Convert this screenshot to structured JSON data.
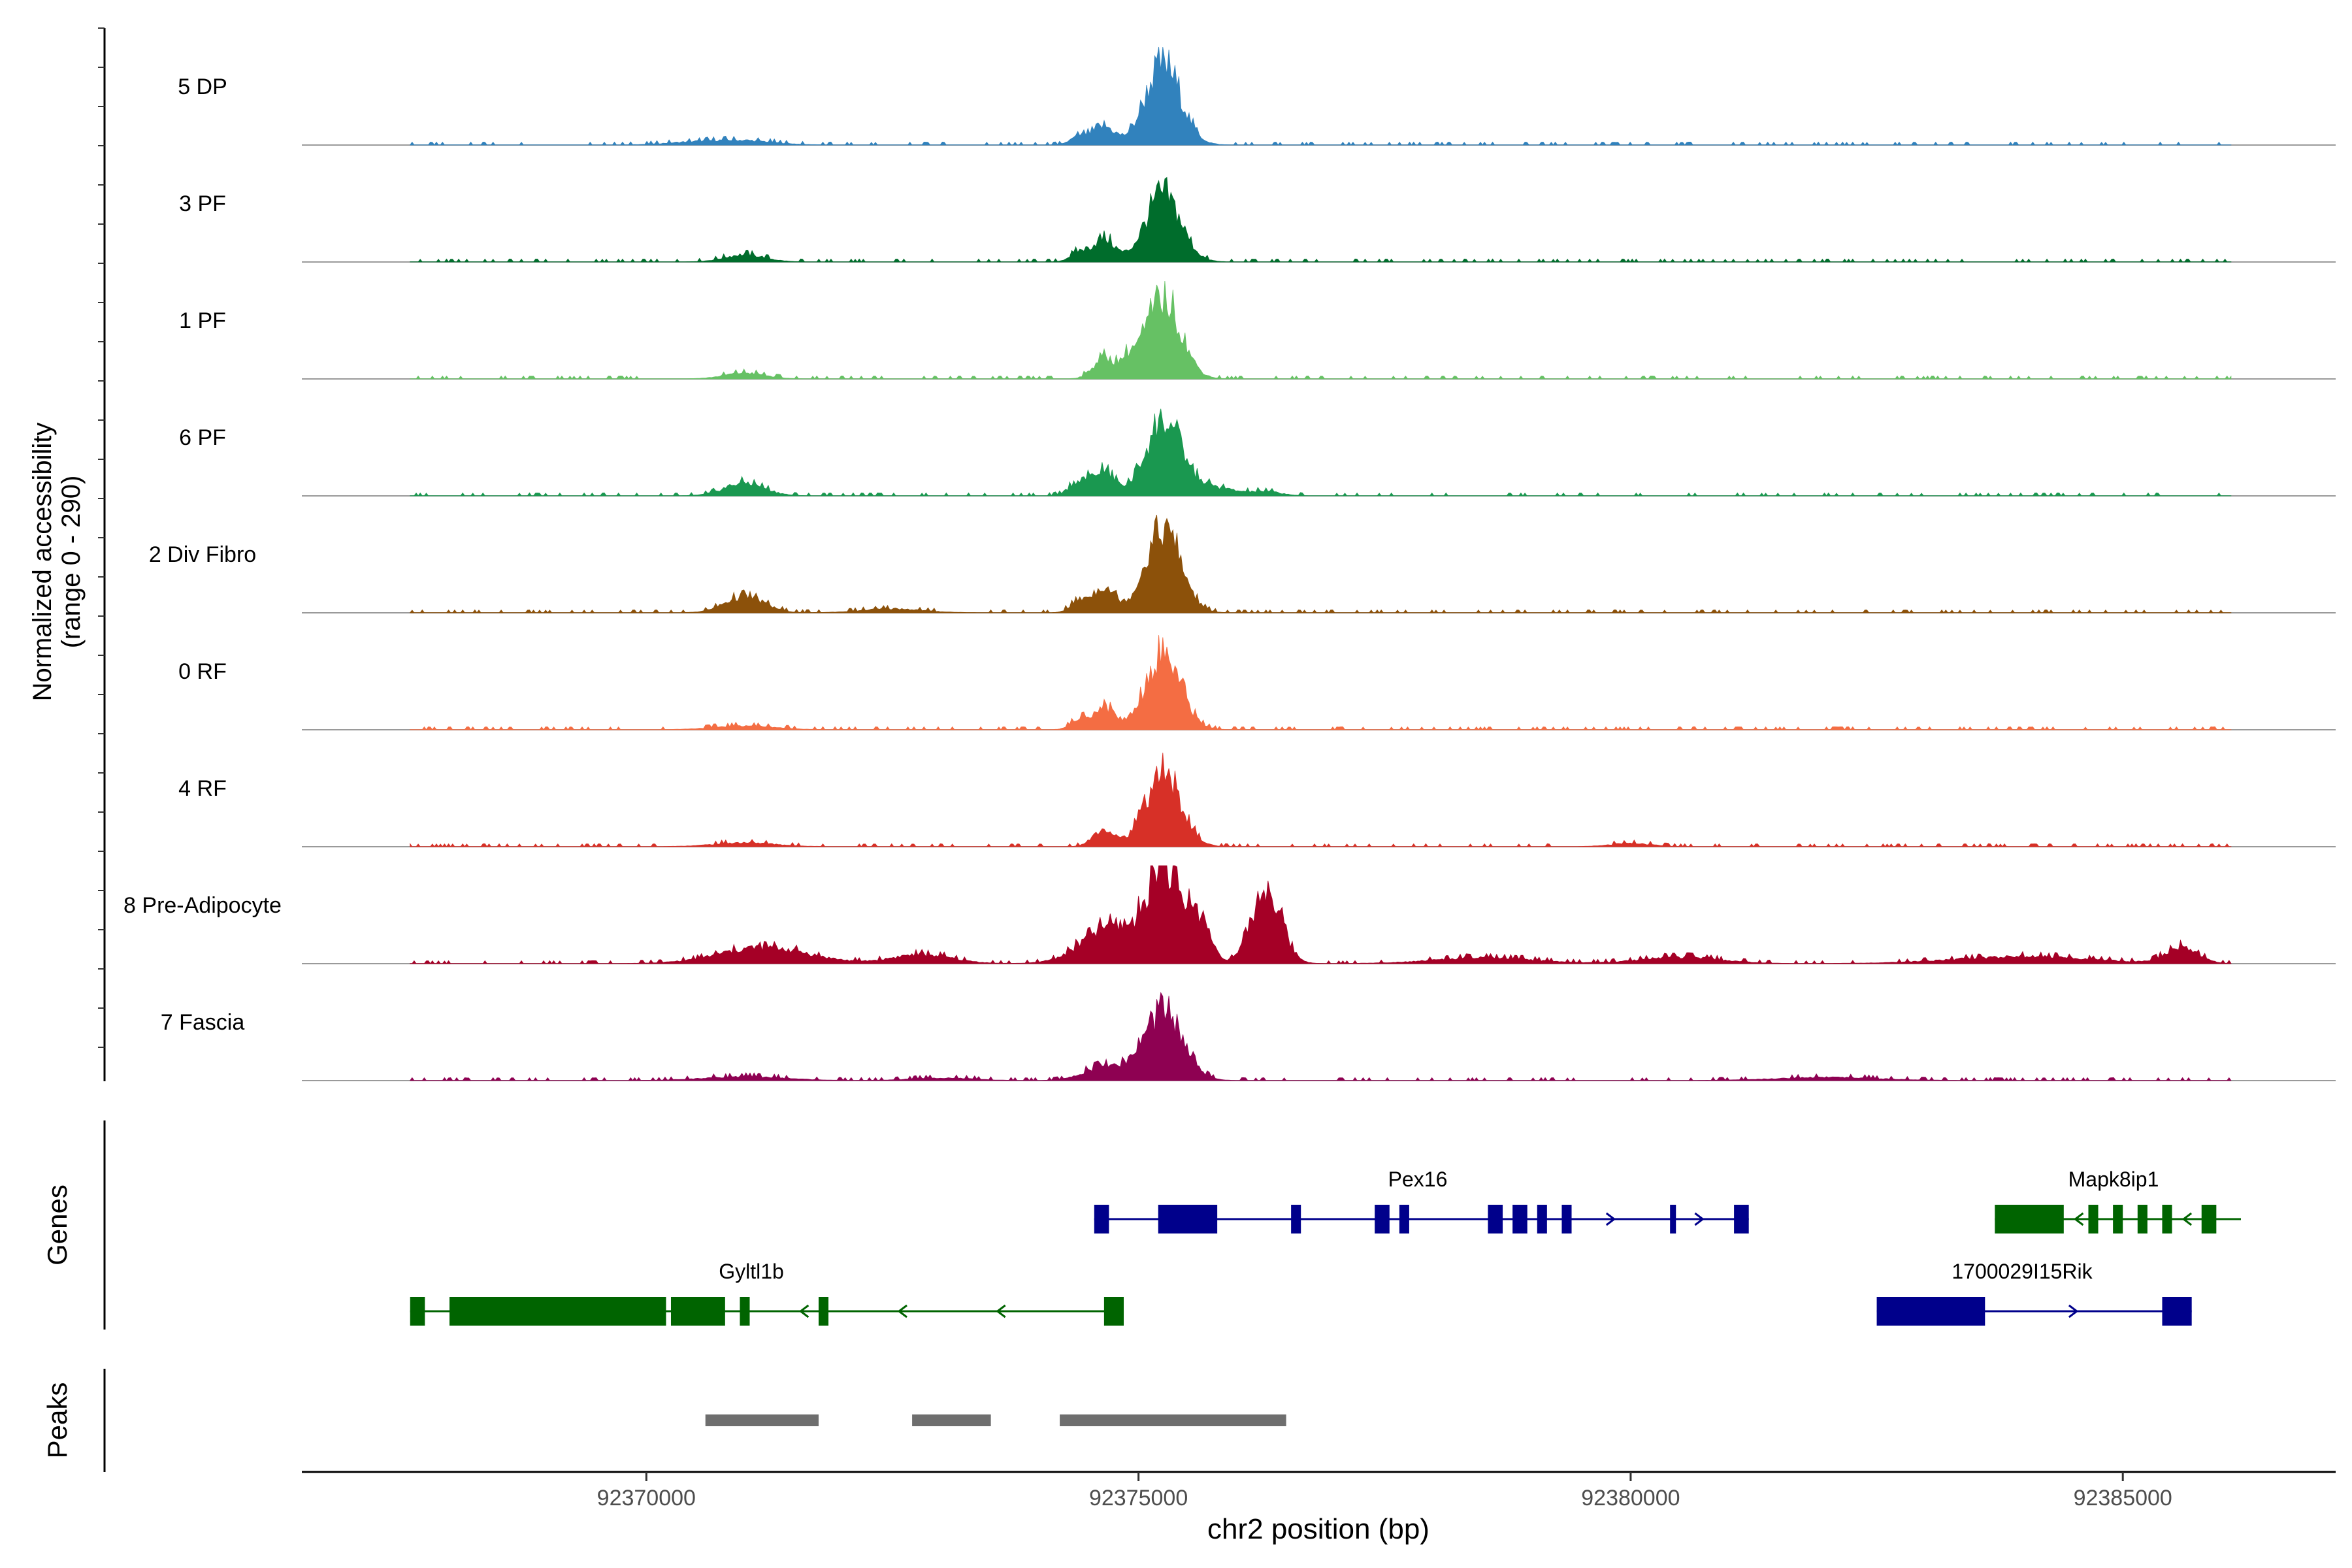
{
  "chart_data": {
    "type": "area",
    "region": "chr2",
    "xlabel": "chr2 position (bp)",
    "ylabel": [
      "Normalized accessibility",
      "(range 0 - 290)"
    ],
    "xlim": [
      92366500,
      92387000
    ],
    "x_ticks": [
      92370000,
      92375000,
      92380000,
      92385000
    ],
    "x_tick_labels": [
      "92370000",
      "92375000",
      "92380000",
      "92385000"
    ],
    "ylim": [
      0,
      290
    ],
    "tracks": [
      {
        "name": "5 DP",
        "color": "#3182bd",
        "peaks": [
          [
            92375250,
            245,
            180
          ],
          [
            92374650,
            55,
            110
          ],
          [
            92374400,
            25,
            90
          ],
          [
            92371000,
            12,
            300
          ],
          [
            92370500,
            8,
            300
          ]
        ]
      },
      {
        "name": "3 PF",
        "color": "#006d2c",
        "peaks": [
          [
            92375250,
            205,
            180
          ],
          [
            92374650,
            70,
            110
          ],
          [
            92374400,
            30,
            90
          ],
          [
            92371000,
            22,
            200
          ]
        ]
      },
      {
        "name": "1 PF",
        "color": "#66c164",
        "peaks": [
          [
            92375250,
            245,
            180
          ],
          [
            92374650,
            65,
            110
          ],
          [
            92374900,
            45,
            80
          ],
          [
            92371000,
            18,
            200
          ]
        ]
      },
      {
        "name": "6 PF",
        "color": "#1a9850",
        "peaks": [
          [
            92375250,
            225,
            180
          ],
          [
            92374650,
            75,
            110
          ],
          [
            92374400,
            45,
            100
          ],
          [
            92375700,
            28,
            250
          ],
          [
            92371000,
            40,
            200
          ],
          [
            92376300,
            12,
            150
          ]
        ]
      },
      {
        "name": "2 Div Fibro",
        "color": "#8c510a",
        "peaks": [
          [
            92375250,
            260,
            180
          ],
          [
            92374650,
            80,
            110
          ],
          [
            92374400,
            35,
            90
          ],
          [
            92371000,
            50,
            200
          ],
          [
            92372500,
            12,
            300
          ]
        ]
      },
      {
        "name": "0 RF",
        "color": "#f46d43",
        "peaks": [
          [
            92375250,
            235,
            180
          ],
          [
            92374650,
            70,
            110
          ],
          [
            92374400,
            30,
            90
          ],
          [
            92371000,
            12,
            300
          ]
        ]
      },
      {
        "name": "4 RF",
        "color": "#d73027",
        "peaks": [
          [
            92375250,
            225,
            180
          ],
          [
            92374650,
            55,
            110
          ],
          [
            92371000,
            12,
            300
          ],
          [
            92380000,
            10,
            200
          ]
        ]
      },
      {
        "name": "8 Pre-Adipocyte",
        "color": "#a50026",
        "peaks": [
          [
            92375250,
            290,
            150
          ],
          [
            92374750,
            120,
            300
          ],
          [
            92375600,
            150,
            120
          ],
          [
            92376300,
            230,
            150
          ],
          [
            92371200,
            50,
            450
          ],
          [
            92372800,
            28,
            300
          ],
          [
            92385600,
            50,
            160
          ],
          [
            92384000,
            22,
            700
          ],
          [
            92378500,
            18,
            500
          ],
          [
            92380500,
            20,
            400
          ]
        ]
      },
      {
        "name": "7 Fascia",
        "color": "#8e0152",
        "peaks": [
          [
            92375250,
            210,
            200
          ],
          [
            92374650,
            45,
            200
          ],
          [
            92371000,
            12,
            400
          ],
          [
            92373000,
            8,
            300
          ],
          [
            92382000,
            10,
            500
          ]
        ]
      }
    ],
    "genes_label": "Genes",
    "genes": [
      {
        "name": "Pex16",
        "strand": "+",
        "color": "#00008b",
        "start": 92374550,
        "end": 92381200,
        "exons": [
          [
            92374550,
            92374700
          ],
          [
            92375200,
            92375800
          ],
          [
            92376550,
            92376650
          ],
          [
            92377400,
            92377550
          ],
          [
            92377650,
            92377750
          ],
          [
            92378550,
            92378700
          ],
          [
            92378800,
            92378950
          ],
          [
            92379050,
            92379150
          ],
          [
            92379300,
            92379400
          ],
          [
            92380400,
            92380460
          ],
          [
            92381050,
            92381200
          ]
        ],
        "arrows": [
          92379800,
          92380700
        ]
      },
      {
        "name": "Mapk8ip1",
        "strand": "-",
        "color": "#006400",
        "start": 92383700,
        "end": 92386200,
        "exons": [
          [
            92383700,
            92384400
          ],
          [
            92384650,
            92384750
          ],
          [
            92384900,
            92385000
          ],
          [
            92385150,
            92385250
          ],
          [
            92385400,
            92385500
          ],
          [
            92385800,
            92385950
          ]
        ],
        "arrows": [
          92384550,
          92385650
        ]
      },
      {
        "name": "Gyltl1b",
        "strand": "-",
        "color": "#006400",
        "start": 92367600,
        "end": 92374850,
        "exons": [
          [
            92367600,
            92367750
          ],
          [
            92368000,
            92370200
          ],
          [
            92370250,
            92370800
          ],
          [
            92370950,
            92371050
          ],
          [
            92371750,
            92371850
          ],
          [
            92374650,
            92374850
          ]
        ],
        "arrows": [
          92371600,
          92372600,
          92373600
        ]
      },
      {
        "name": "1700029I15Rik",
        "strand": "+",
        "color": "#00008b",
        "start": 92382500,
        "end": 92385700,
        "exons": [
          [
            92382500,
            92383600
          ],
          [
            92385400,
            92385700
          ]
        ],
        "arrows": [
          92384500
        ]
      }
    ],
    "peaks_label": "Peaks",
    "peak_regions": [
      [
        92370600,
        92371750
      ],
      [
        92372700,
        92373500
      ],
      [
        92374200,
        92376500
      ]
    ]
  }
}
